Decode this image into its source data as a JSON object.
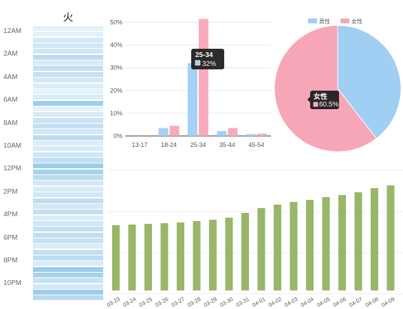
{
  "heatmap": {
    "day_label": "火",
    "hour_labels": [
      "12AM",
      "2AM",
      "4AM",
      "6AM",
      "8AM",
      "10AM",
      "12PM",
      "2PM",
      "4PM",
      "6PM",
      "8PM",
      "10PM"
    ],
    "cell_colors": [
      "#e3f1fa",
      "#e3f1fa",
      "#d2e8f6",
      "#d2e8f6",
      "#cfe6f5",
      "#bcdcf1",
      "#d7ebf7",
      "#c3e0f3",
      "#c5e1f3",
      "#d2e8f6",
      "#dbedf8",
      "#e3f1fa",
      "#d9ecf7",
      "#9ccdea",
      "#e3f1fa",
      "#d7ebf7",
      "#c9e3f4",
      "#c3e0f3",
      "#cfe6f5",
      "#bcdcf1",
      "#dbedf8",
      "#d7ebf7",
      "#cfe6f5",
      "#bfdef2",
      "#9ccdea",
      "#a6d2ec",
      "#bcdcf1",
      "#d2e8f6",
      "#d7ebf7",
      "#cfe6f5",
      "#bfdef2",
      "#d2e8f6",
      "#c3e0f3",
      "#dbedf8",
      "#cfe6f5",
      "#c3e0f3",
      "#bfdef2",
      "#c5e1f3",
      "#d9ecf7",
      "#c3e0f3",
      "#bcdcf1",
      "#d7ebf7",
      "#9ccdea",
      "#a6d2ec",
      "#c5e1f3",
      "#d2e8f6",
      "#9ccdea",
      "#b9daf0"
    ]
  },
  "chart_data": [
    {
      "type": "bar",
      "categories": [
        "13-17",
        "18-24",
        "25-34",
        "35-44",
        "45-54"
      ],
      "series": [
        {
          "name": "男性",
          "values": [
            0,
            3.5,
            32,
            2.2,
            0.8
          ],
          "color": "#a0cff3"
        },
        {
          "name": "女性",
          "values": [
            0,
            4.5,
            51.5,
            3.5,
            1.0
          ],
          "color": "#f7a6b8"
        }
      ],
      "yticks": [
        "0%",
        "10%",
        "20%",
        "30%",
        "40%",
        "50%"
      ],
      "ylim": [
        0,
        55
      ],
      "tooltip": {
        "title": "25-34",
        "value": "32%"
      }
    },
    {
      "type": "pie",
      "labels": [
        "男性",
        "女性"
      ],
      "values": [
        39.5,
        60.5
      ],
      "colors": [
        "#a0cff3",
        "#f7a6b8"
      ],
      "legend": "top",
      "tooltip": {
        "title": "女性",
        "value": "60.5%"
      }
    },
    {
      "type": "bar",
      "categories": [
        "03-23",
        "03-24",
        "03-25",
        "03-26",
        "03-27",
        "03-28",
        "03-29",
        "03-30",
        "03-31",
        "04-01",
        "04-02",
        "04-03",
        "04-04",
        "04-05",
        "04-06",
        "04-07",
        "04-08",
        "04-09"
      ],
      "values": [
        95,
        96,
        97,
        98,
        99,
        101,
        103,
        106,
        113,
        120,
        125,
        129,
        132,
        136,
        139,
        143,
        149,
        153
      ],
      "color": "#9ab667",
      "ylim": [
        0,
        175
      ]
    }
  ]
}
